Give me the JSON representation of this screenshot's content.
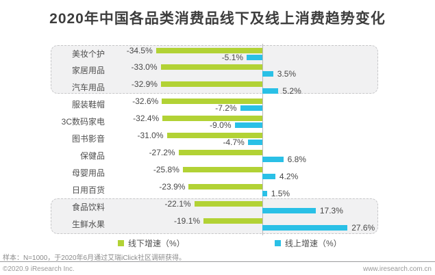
{
  "title": "2020年中国各品类消费品线下及线上消费趋势变化",
  "chart_data": {
    "type": "bar",
    "orientation": "horizontal",
    "title": "2020年中国各品类消费品线下及线上消费趋势变化",
    "categories": [
      "美妆个护",
      "家居用品",
      "汽车用品",
      "服装鞋帽",
      "3C数码家电",
      "图书影音",
      "保健品",
      "母婴用品",
      "日用百货",
      "食品饮料",
      "生鲜水果"
    ],
    "series": [
      {
        "name": "线下增速（%）",
        "color": "#b2d235",
        "values": [
          -34.5,
          -33.0,
          -32.9,
          -32.6,
          -32.4,
          -31.0,
          -27.2,
          -25.8,
          -23.9,
          -22.1,
          -19.1
        ]
      },
      {
        "name": "线上增速（%）",
        "color": "#2ac0e6",
        "values": [
          -5.1,
          3.5,
          5.2,
          -7.2,
          -9.0,
          -4.7,
          6.8,
          4.2,
          1.5,
          17.3,
          27.6
        ]
      }
    ],
    "value_suffix": "%",
    "value_decimals": 1,
    "axis_value": 0,
    "legend_position": "bottom",
    "grid": false,
    "highlight_groups": [
      {
        "categories": [
          "美妆个护",
          "家居用品",
          "汽车用品"
        ],
        "rows": [
          0,
          2
        ]
      },
      {
        "categories": [
          "食品饮料",
          "生鲜水果"
        ],
        "rows": [
          9,
          10
        ]
      }
    ]
  },
  "footer": {
    "note": "样本：N=1000，于2020年6月通过艾瑞iClick社区调研获得。",
    "copyright": "©2020.9 iResearch Inc.",
    "website": "www.iresearch.com.cn"
  }
}
